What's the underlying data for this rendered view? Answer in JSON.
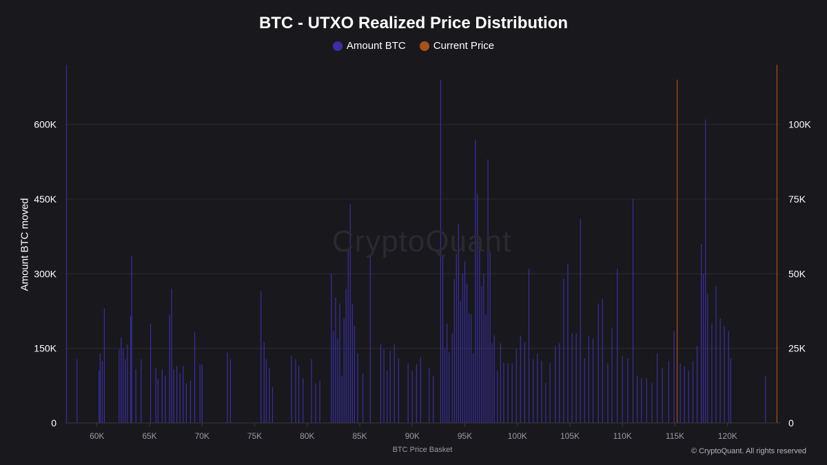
{
  "chart_data": {
    "type": "bar",
    "title": "BTC - UTXO Realized Price Distribution",
    "xlabel": "BTC Price Basket",
    "ylabel": "Amount BTC moved",
    "y2label": "",
    "xlim": [
      57000,
      125000
    ],
    "ylim": [
      0,
      720000
    ],
    "y2lim": [
      0,
      120000
    ],
    "x_ticks": [
      60000,
      65000,
      70000,
      75000,
      80000,
      85000,
      90000,
      95000,
      100000,
      105000,
      110000,
      115000,
      120000
    ],
    "x_tick_labels": [
      "60K",
      "65K",
      "70K",
      "75K",
      "80K",
      "85K",
      "90K",
      "95K",
      "100K",
      "105K",
      "110K",
      "115K",
      "120K"
    ],
    "y_ticks": [
      0,
      150000,
      300000,
      450000,
      600000
    ],
    "y_tick_labels": [
      "0",
      "150K",
      "300K",
      "450K",
      "600K"
    ],
    "y2_ticks": [
      0,
      25000,
      50000,
      75000,
      100000
    ],
    "y2_tick_labels": [
      "0",
      "25K",
      "50K",
      "75K",
      "100K"
    ],
    "grid": true,
    "legend_position": "top-center",
    "series": [
      {
        "name": "Amount BTC",
        "color": "#3a2fa6",
        "axis": "left",
        "points": [
          [
            57100,
            720000
          ],
          [
            58100,
            128000
          ],
          [
            60200,
            105000
          ],
          [
            60300,
            140000
          ],
          [
            60500,
            125000
          ],
          [
            60700,
            230000
          ],
          [
            62100,
            148000
          ],
          [
            62300,
            172000
          ],
          [
            62500,
            150000
          ],
          [
            62700,
            128000
          ],
          [
            62900,
            158000
          ],
          [
            63200,
            215000
          ],
          [
            63300,
            335000
          ],
          [
            63700,
            108000
          ],
          [
            64200,
            128000
          ],
          [
            65100,
            200000
          ],
          [
            65600,
            110000
          ],
          [
            65800,
            88000
          ],
          [
            66200,
            108000
          ],
          [
            66500,
            95000
          ],
          [
            66900,
            217000
          ],
          [
            67100,
            270000
          ],
          [
            67300,
            108000
          ],
          [
            67600,
            115000
          ],
          [
            67900,
            100000
          ],
          [
            68200,
            115000
          ],
          [
            68500,
            80000
          ],
          [
            68900,
            85000
          ],
          [
            69300,
            182000
          ],
          [
            69800,
            118000
          ],
          [
            70000,
            118000
          ],
          [
            72400,
            142000
          ],
          [
            72700,
            128000
          ],
          [
            75600,
            265000
          ],
          [
            75900,
            162000
          ],
          [
            76100,
            128000
          ],
          [
            76400,
            110000
          ],
          [
            76700,
            72000
          ],
          [
            78500,
            135000
          ],
          [
            78900,
            128000
          ],
          [
            79200,
            115000
          ],
          [
            79600,
            90000
          ],
          [
            80400,
            128000
          ],
          [
            80800,
            80000
          ],
          [
            81200,
            85000
          ],
          [
            82300,
            300000
          ],
          [
            82500,
            185000
          ],
          [
            82700,
            252000
          ],
          [
            82900,
            170000
          ],
          [
            83100,
            240000
          ],
          [
            83300,
            95000
          ],
          [
            83500,
            210000
          ],
          [
            83700,
            270000
          ],
          [
            83900,
            350000
          ],
          [
            84100,
            440000
          ],
          [
            84300,
            240000
          ],
          [
            84500,
            195000
          ],
          [
            84800,
            140000
          ],
          [
            85300,
            100000
          ],
          [
            86000,
            335000
          ],
          [
            87000,
            158000
          ],
          [
            87300,
            148000
          ],
          [
            87600,
            105000
          ],
          [
            87900,
            145000
          ],
          [
            88300,
            158000
          ],
          [
            88700,
            130000
          ],
          [
            89600,
            120000
          ],
          [
            90000,
            105000
          ],
          [
            90400,
            118000
          ],
          [
            90800,
            132000
          ],
          [
            91600,
            110000
          ],
          [
            92000,
            95000
          ],
          [
            92700,
            690000
          ],
          [
            92900,
            335000
          ],
          [
            93100,
            150000
          ],
          [
            93300,
            200000
          ],
          [
            93500,
            142000
          ],
          [
            93800,
            180000
          ],
          [
            94000,
            290000
          ],
          [
            94200,
            340000
          ],
          [
            94400,
            400000
          ],
          [
            94600,
            245000
          ],
          [
            94800,
            300000
          ],
          [
            95000,
            325000
          ],
          [
            95200,
            280000
          ],
          [
            95400,
            220000
          ],
          [
            95600,
            218000
          ],
          [
            95800,
            140000
          ],
          [
            96000,
            570000
          ],
          [
            96200,
            460000
          ],
          [
            96400,
            355000
          ],
          [
            96600,
            275000
          ],
          [
            96800,
            300000
          ],
          [
            97000,
            218000
          ],
          [
            97200,
            530000
          ],
          [
            97400,
            345000
          ],
          [
            97600,
            160000
          ],
          [
            97800,
            176000
          ],
          [
            98100,
            106000
          ],
          [
            98400,
            160000
          ],
          [
            98700,
            122000
          ],
          [
            99100,
            120000
          ],
          [
            99500,
            120000
          ],
          [
            99900,
            150000
          ],
          [
            100300,
            175000
          ],
          [
            100700,
            162000
          ],
          [
            101100,
            310000
          ],
          [
            101500,
            128000
          ],
          [
            101900,
            140000
          ],
          [
            102300,
            125000
          ],
          [
            102700,
            80000
          ],
          [
            103100,
            120000
          ],
          [
            103600,
            155000
          ],
          [
            104000,
            160000
          ],
          [
            104400,
            290000
          ],
          [
            104800,
            320000
          ],
          [
            105200,
            180000
          ],
          [
            105600,
            180000
          ],
          [
            106000,
            410000
          ],
          [
            106400,
            130000
          ],
          [
            106800,
            175000
          ],
          [
            107200,
            170000
          ],
          [
            107700,
            240000
          ],
          [
            108100,
            250000
          ],
          [
            108600,
            120000
          ],
          [
            109000,
            190000
          ],
          [
            109500,
            310000
          ],
          [
            110000,
            135000
          ],
          [
            110500,
            130000
          ],
          [
            111000,
            450000
          ],
          [
            111400,
            95000
          ],
          [
            111800,
            90000
          ],
          [
            112300,
            90000
          ],
          [
            112800,
            80000
          ],
          [
            113300,
            140000
          ],
          [
            113800,
            110000
          ],
          [
            114400,
            125000
          ],
          [
            114900,
            185000
          ],
          [
            115500,
            120000
          ],
          [
            115900,
            115000
          ],
          [
            116300,
            105000
          ],
          [
            116700,
            125000
          ],
          [
            117100,
            155000
          ],
          [
            117500,
            360000
          ],
          [
            117700,
            300000
          ],
          [
            117900,
            610000
          ],
          [
            118100,
            260000
          ],
          [
            118500,
            200000
          ],
          [
            118900,
            275000
          ],
          [
            119300,
            210000
          ],
          [
            119700,
            195000
          ],
          [
            120100,
            185000
          ],
          [
            120300,
            130000
          ],
          [
            123600,
            95000
          ]
        ]
      },
      {
        "name": "Current Price",
        "color": "#a8511b",
        "axis": "right",
        "points": [
          [
            115200,
            115000
          ],
          [
            124700,
            120000
          ]
        ]
      }
    ]
  },
  "watermark": "CryptoQuant",
  "copyright": "© CryptoQuant. All rights reserved"
}
